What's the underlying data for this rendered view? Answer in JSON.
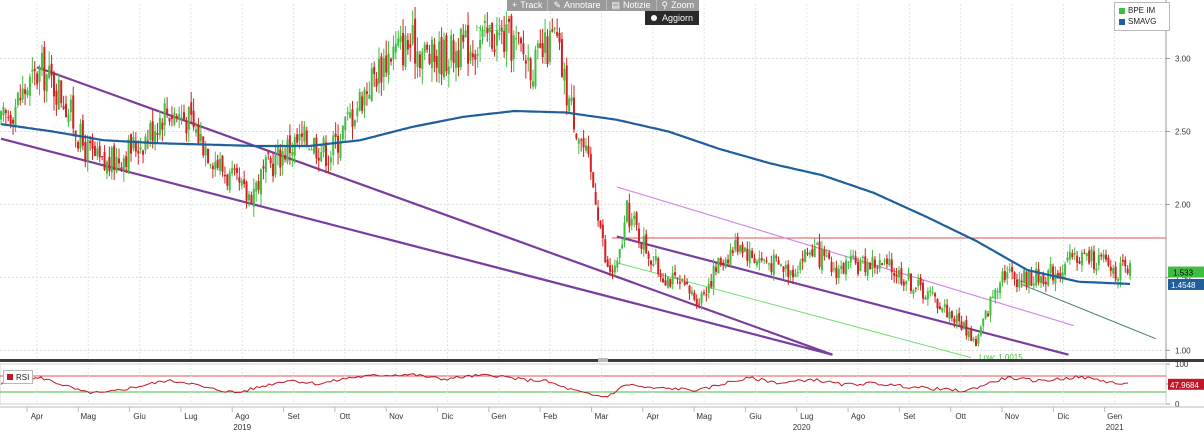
{
  "toolbar": {
    "track": "Track",
    "annotate": "Annotare",
    "news": "Notizie",
    "zoom": "Zoom",
    "refresh": "Aggiorn"
  },
  "legend": {
    "items": [
      {
        "label": "BPE IM",
        "color": "#3fbf3f"
      },
      {
        "label": "SMAVG",
        "color": "#1f5f9c"
      }
    ]
  },
  "rsi_legend": {
    "label": "RSI",
    "color": "#c0182a"
  },
  "colors": {
    "up": "#3fbf3f",
    "down": "#d42020",
    "smavg": "#1f5f9c",
    "channel": "#7a3d9e",
    "channel_light": "#d58ae8",
    "green_line": "#6fe06f",
    "teal_line": "#3f7f6f",
    "resistance": "#e05050",
    "rsi": "#c0182a",
    "rsi_upper": "#e05050",
    "rsi_lower": "#3fbf3f"
  },
  "chart_data": {
    "type": "candlestick",
    "instrument": "BPE IM",
    "overlay": "SMAVG",
    "ylim": [
      0.92,
      3.25
    ],
    "y_ticks": [
      "3.00",
      "2.50",
      "2.00",
      "1.50",
      "1.00"
    ],
    "x_ticks": [
      {
        "label": "Apr",
        "t": 0.7
      },
      {
        "label": "Mag",
        "t": 1.7
      },
      {
        "label": "Giu",
        "t": 2.7
      },
      {
        "label": "Lug",
        "t": 3.7
      },
      {
        "label": "Ago",
        "t": 4.7
      },
      {
        "label": "Set",
        "t": 5.7
      },
      {
        "label": "Ott",
        "t": 6.7
      },
      {
        "label": "Nov",
        "t": 7.7
      },
      {
        "label": "Dic",
        "t": 8.7
      },
      {
        "label": "Gen",
        "t": 9.7
      },
      {
        "label": "Feb",
        "t": 10.7
      },
      {
        "label": "Mar",
        "t": 11.7
      },
      {
        "label": "Apr",
        "t": 12.7
      },
      {
        "label": "Mag",
        "t": 13.7
      },
      {
        "label": "Giu",
        "t": 14.7
      },
      {
        "label": "Lug",
        "t": 15.7
      },
      {
        "label": "Ago",
        "t": 16.7
      },
      {
        "label": "Set",
        "t": 17.7
      },
      {
        "label": "Ott",
        "t": 18.7
      },
      {
        "label": "Nov",
        "t": 19.7
      },
      {
        "label": "Dic",
        "t": 20.7
      },
      {
        "label": "Gen",
        "t": 21.7
      }
    ],
    "year_labels": [
      {
        "label": "2019",
        "t": 4.7
      },
      {
        "label": "2020",
        "t": 15.6
      },
      {
        "label": "2021",
        "t": 21.7
      }
    ],
    "price_path": [
      [
        0.0,
        2.55
      ],
      [
        0.5,
        2.8
      ],
      [
        0.8,
        2.92
      ],
      [
        1.2,
        2.75
      ],
      [
        1.6,
        2.4
      ],
      [
        2.0,
        2.25
      ],
      [
        2.4,
        2.35
      ],
      [
        2.8,
        2.45
      ],
      [
        3.2,
        2.65
      ],
      [
        3.6,
        2.6
      ],
      [
        4.0,
        2.4
      ],
      [
        4.4,
        2.2
      ],
      [
        4.8,
        2.05
      ],
      [
        5.2,
        2.25
      ],
      [
        5.6,
        2.4
      ],
      [
        6.0,
        2.45
      ],
      [
        6.4,
        2.35
      ],
      [
        6.8,
        2.6
      ],
      [
        7.2,
        2.85
      ],
      [
        7.6,
        3.05
      ],
      [
        8.0,
        3.1
      ],
      [
        8.4,
        3.0
      ],
      [
        8.8,
        3.05
      ],
      [
        9.2,
        3.1
      ],
      [
        9.6,
        3.16
      ],
      [
        10.0,
        3.1
      ],
      [
        10.4,
        2.95
      ],
      [
        10.6,
        3.05
      ],
      [
        10.8,
        3.15
      ],
      [
        11.0,
        2.8
      ],
      [
        11.3,
        2.45
      ],
      [
        11.6,
        2.05
      ],
      [
        11.8,
        1.55
      ],
      [
        12.0,
        1.55
      ],
      [
        12.2,
        1.95
      ],
      [
        12.5,
        1.75
      ],
      [
        12.8,
        1.55
      ],
      [
        13.2,
        1.45
      ],
      [
        13.6,
        1.35
      ],
      [
        14.0,
        1.6
      ],
      [
        14.4,
        1.75
      ],
      [
        14.6,
        1.65
      ],
      [
        15.0,
        1.6
      ],
      [
        15.4,
        1.55
      ],
      [
        15.8,
        1.7
      ],
      [
        16.2,
        1.55
      ],
      [
        16.6,
        1.58
      ],
      [
        17.0,
        1.6
      ],
      [
        17.4,
        1.55
      ],
      [
        17.8,
        1.45
      ],
      [
        18.2,
        1.35
      ],
      [
        18.5,
        1.25
      ],
      [
        18.8,
        1.15
      ],
      [
        19.0,
        1.05
      ],
      [
        19.2,
        1.25
      ],
      [
        19.5,
        1.55
      ],
      [
        19.8,
        1.5
      ],
      [
        20.2,
        1.5
      ],
      [
        20.6,
        1.55
      ],
      [
        21.0,
        1.65
      ],
      [
        21.4,
        1.62
      ],
      [
        21.7,
        1.55
      ],
      [
        22.0,
        1.53
      ]
    ],
    "smavg_path": [
      [
        0.0,
        2.55
      ],
      [
        1.0,
        2.5
      ],
      [
        2.0,
        2.44
      ],
      [
        3.0,
        2.42
      ],
      [
        4.0,
        2.41
      ],
      [
        5.0,
        2.4
      ],
      [
        6.0,
        2.4
      ],
      [
        7.0,
        2.44
      ],
      [
        8.0,
        2.53
      ],
      [
        9.0,
        2.6
      ],
      [
        10.0,
        2.64
      ],
      [
        11.0,
        2.63
      ],
      [
        12.0,
        2.58
      ],
      [
        13.0,
        2.5
      ],
      [
        14.0,
        2.38
      ],
      [
        15.0,
        2.28
      ],
      [
        16.0,
        2.2
      ],
      [
        17.0,
        2.08
      ],
      [
        18.0,
        1.92
      ],
      [
        19.0,
        1.75
      ],
      [
        20.0,
        1.55
      ],
      [
        21.0,
        1.47
      ],
      [
        22.0,
        1.4548
      ]
    ],
    "last_price": "1.533",
    "last_smavg": "1.4548",
    "high_label": "Hi: 3.161",
    "high_point": [
      9.6,
      3.161
    ],
    "low_label": "Low: 1.0015",
    "low_point": [
      19.0,
      1.0015
    ],
    "resistance_level": 1.77,
    "trendlines": [
      {
        "kind": "channel",
        "from": [
          0.7,
          2.94
        ],
        "to": [
          16.2,
          0.97
        ]
      },
      {
        "kind": "channel",
        "from": [
          0.0,
          2.45
        ],
        "to": [
          16.2,
          0.97
        ]
      },
      {
        "kind": "channel_light",
        "from": [
          12.0,
          2.12
        ],
        "to": [
          20.9,
          1.17
        ]
      },
      {
        "kind": "channel",
        "from": [
          12.0,
          1.78
        ],
        "to": [
          20.8,
          0.97
        ]
      },
      {
        "kind": "green",
        "from": [
          12.0,
          1.6
        ],
        "to": [
          18.9,
          0.95
        ]
      },
      {
        "kind": "teal",
        "from": [
          19.9,
          1.45
        ],
        "to": [
          22.5,
          1.08
        ]
      }
    ],
    "rsi": {
      "ylim": [
        0,
        100
      ],
      "y_ticks": [
        "100",
        "50",
        "0"
      ],
      "upper": 70,
      "lower": 30,
      "last": "47.9684",
      "path": [
        [
          0.0,
          50
        ],
        [
          0.5,
          62
        ],
        [
          0.8,
          65
        ],
        [
          1.2,
          48
        ],
        [
          1.6,
          30
        ],
        [
          2.0,
          27
        ],
        [
          2.6,
          42
        ],
        [
          3.2,
          58
        ],
        [
          3.6,
          55
        ],
        [
          4.0,
          40
        ],
        [
          4.6,
          28
        ],
        [
          5.2,
          48
        ],
        [
          5.6,
          60
        ],
        [
          6.2,
          50
        ],
        [
          6.8,
          66
        ],
        [
          7.4,
          72
        ],
        [
          8.0,
          74
        ],
        [
          8.6,
          62
        ],
        [
          9.2,
          70
        ],
        [
          9.6,
          72
        ],
        [
          10.2,
          60
        ],
        [
          10.6,
          58
        ],
        [
          11.0,
          40
        ],
        [
          11.5,
          22
        ],
        [
          11.8,
          18
        ],
        [
          12.2,
          50
        ],
        [
          12.6,
          40
        ],
        [
          13.2,
          38
        ],
        [
          13.6,
          34
        ],
        [
          14.2,
          55
        ],
        [
          14.6,
          65
        ],
        [
          15.2,
          52
        ],
        [
          15.8,
          62
        ],
        [
          16.4,
          48
        ],
        [
          17.0,
          52
        ],
        [
          17.6,
          44
        ],
        [
          18.2,
          38
        ],
        [
          18.8,
          32
        ],
        [
          19.2,
          50
        ],
        [
          19.6,
          66
        ],
        [
          20.2,
          58
        ],
        [
          20.6,
          62
        ],
        [
          21.0,
          68
        ],
        [
          21.4,
          60
        ],
        [
          21.8,
          50
        ],
        [
          22.0,
          48
        ]
      ]
    }
  }
}
